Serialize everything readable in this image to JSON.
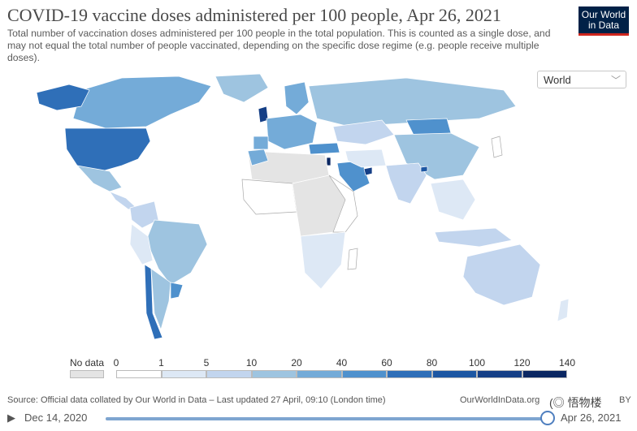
{
  "header": {
    "title": "COVID-19 vaccine doses administered per 100 people, Apr 26, 2021",
    "subtitle": "Total number of vaccination doses administered per 100 people in the total population. This is counted as a single dose, and may not equal the total number of people vaccinated, depending on the specific dose regime (e.g. people receive multiple doses).",
    "logo_line1": "Our World",
    "logo_line2": "in Data"
  },
  "region_select": {
    "value": "World",
    "chevron": "chevron-down-icon"
  },
  "legend": {
    "no_data_label": "No data",
    "no_data_color": "#e4e4e4",
    "ticks": [
      "0",
      "1",
      "5",
      "10",
      "20",
      "40",
      "60",
      "80",
      "100",
      "120",
      "140"
    ],
    "colors": [
      "#ffffff",
      "#dde8f5",
      "#c2d5ee",
      "#9ec4e0",
      "#74abd8",
      "#4f91cd",
      "#2f6fb8",
      "#1d57a3",
      "#153f86",
      "#0b2762"
    ]
  },
  "footer": {
    "source": "Source: Official data collated by Our World in Data – Last updated 27 April, 09:10 (London time)",
    "url": "OurWorldInData.org",
    "license": "BY",
    "watermark": "(◎ 悟物楼"
  },
  "timeline": {
    "start_date": "Dec 14, 2020",
    "end_date": "Apr 26, 2021",
    "progress": 1.0,
    "play_icon": "play-icon"
  }
}
